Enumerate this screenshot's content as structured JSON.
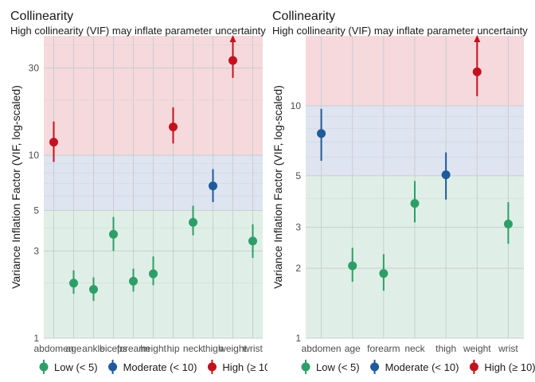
{
  "colors": {
    "low": "#2e9e68",
    "moderate": "#1f5a9a",
    "high": "#c3121e",
    "band_low": "#dfefe7",
    "band_moderate": "#dee4f0",
    "band_high": "#f5d9dc",
    "grid": "#c9ced0"
  },
  "legend": [
    {
      "key": "low",
      "label": "Low (< 5)"
    },
    {
      "key": "moderate",
      "label": "Moderate (< 10)"
    },
    {
      "key": "high",
      "label": "High (≥ 10)"
    }
  ],
  "chart_data": [
    {
      "type": "scatter",
      "title": "Collinearity",
      "subtitle": "High collinearity (VIF) may inflate parameter uncertainty",
      "ylabel": "Variance Inflation Factor (VIF, log-scaled)",
      "xlabel": "",
      "y_scale": "log",
      "ylim": [
        1,
        45
      ],
      "y_ticks": [
        1,
        3,
        5,
        10,
        30
      ],
      "grid": true,
      "legend_position": "bottom",
      "bands": [
        {
          "key": "low",
          "from": 1,
          "to": 5
        },
        {
          "key": "moderate",
          "from": 5,
          "to": 10
        },
        {
          "key": "high",
          "from": 10,
          "to": 45
        }
      ],
      "categories": [
        "abdomen",
        "age",
        "ankle",
        "biceps",
        "forearm",
        "height",
        "hip",
        "neck",
        "thigh",
        "weight",
        "wrist"
      ],
      "points": [
        {
          "term": "abdomen",
          "vif": 11.8,
          "low": 9.2,
          "high": 15.3,
          "group": "high"
        },
        {
          "term": "age",
          "vif": 2.0,
          "low": 1.75,
          "high": 2.35,
          "group": "low"
        },
        {
          "term": "ankle",
          "vif": 1.85,
          "low": 1.6,
          "high": 2.15,
          "group": "low"
        },
        {
          "term": "biceps",
          "vif": 3.7,
          "low": 3.0,
          "high": 4.6,
          "group": "low"
        },
        {
          "term": "forearm",
          "vif": 2.05,
          "low": 1.8,
          "high": 2.4,
          "group": "low"
        },
        {
          "term": "height",
          "vif": 2.25,
          "low": 1.95,
          "high": 2.8,
          "group": "low"
        },
        {
          "term": "hip",
          "vif": 14.3,
          "low": 11.6,
          "high": 18.3,
          "group": "high"
        },
        {
          "term": "neck",
          "vif": 4.3,
          "low": 3.65,
          "high": 5.3,
          "group": "low"
        },
        {
          "term": "thigh",
          "vif": 6.8,
          "low": 5.55,
          "high": 8.4,
          "group": "moderate"
        },
        {
          "term": "weight",
          "vif": 33.0,
          "low": 26.5,
          "high": 45,
          "group": "high",
          "arrow": true
        },
        {
          "term": "wrist",
          "vif": 3.4,
          "low": 2.75,
          "high": 4.2,
          "group": "low"
        }
      ]
    },
    {
      "type": "scatter",
      "title": "Collinearity",
      "subtitle": "High collinearity (VIF) may inflate parameter uncertainty",
      "ylabel": "Variance Inflation Factor (VIF, log-scaled)",
      "xlabel": "",
      "y_scale": "log",
      "ylim": [
        1,
        20
      ],
      "y_ticks": [
        1,
        2,
        3,
        5,
        10
      ],
      "grid": true,
      "legend_position": "bottom",
      "bands": [
        {
          "key": "low",
          "from": 1,
          "to": 5
        },
        {
          "key": "moderate",
          "from": 5,
          "to": 10
        },
        {
          "key": "high",
          "from": 10,
          "to": 20
        }
      ],
      "categories": [
        "abdomen",
        "age",
        "forearm",
        "neck",
        "thigh",
        "weight",
        "wrist"
      ],
      "points": [
        {
          "term": "abdomen",
          "vif": 7.6,
          "low": 5.8,
          "high": 9.7,
          "group": "moderate"
        },
        {
          "term": "age",
          "vif": 2.05,
          "low": 1.75,
          "high": 2.45,
          "group": "low"
        },
        {
          "term": "forearm",
          "vif": 1.9,
          "low": 1.6,
          "high": 2.3,
          "group": "low"
        },
        {
          "term": "neck",
          "vif": 3.8,
          "low": 3.15,
          "high": 4.75,
          "group": "low"
        },
        {
          "term": "thigh",
          "vif": 5.05,
          "low": 3.95,
          "high": 6.3,
          "group": "moderate"
        },
        {
          "term": "weight",
          "vif": 14.0,
          "low": 11.0,
          "high": 20,
          "group": "high",
          "arrow": true
        },
        {
          "term": "wrist",
          "vif": 3.1,
          "low": 2.55,
          "high": 3.85,
          "group": "low"
        }
      ]
    }
  ]
}
